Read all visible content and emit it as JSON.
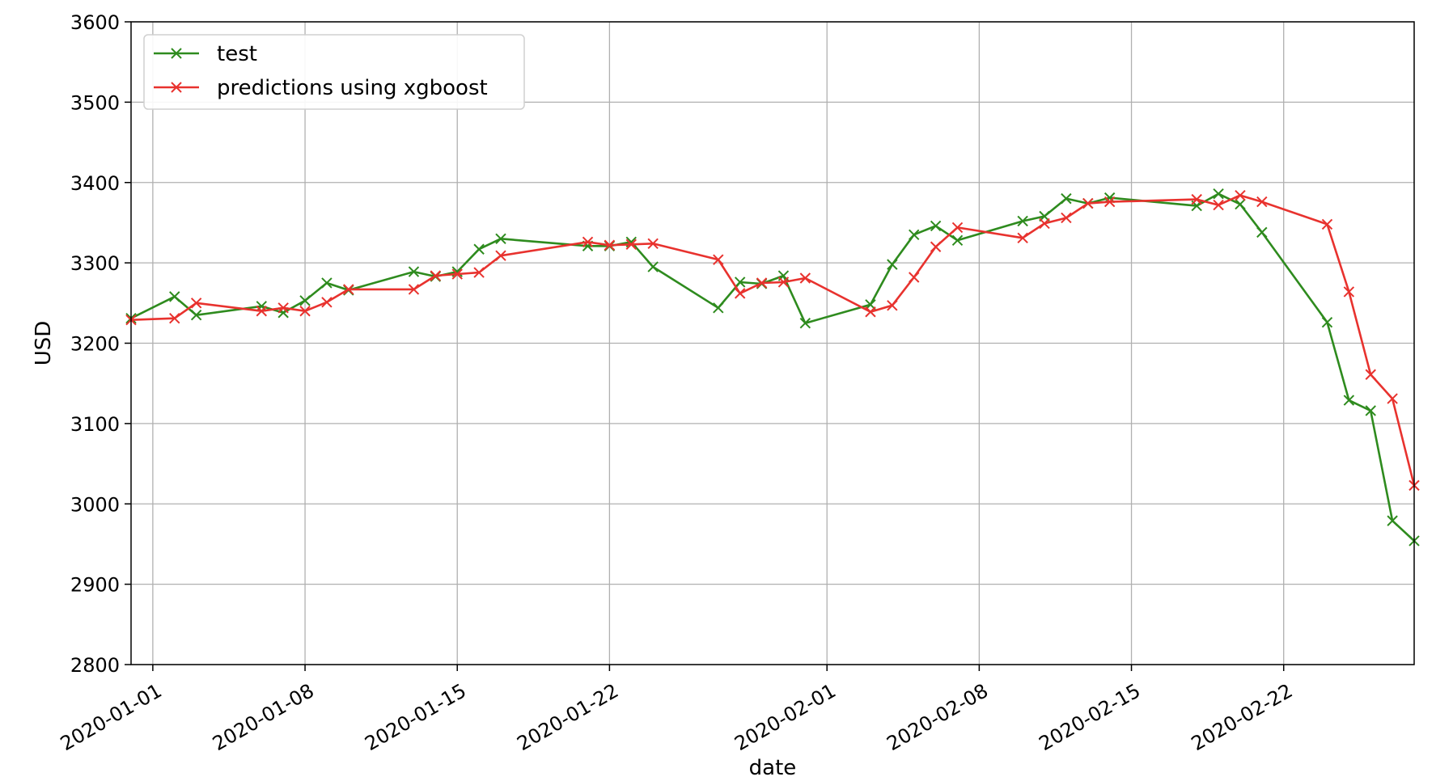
{
  "chart_data": {
    "type": "line",
    "title": "",
    "xlabel": "date",
    "ylabel": "USD",
    "ylim": [
      2800,
      3600
    ],
    "xlim": [
      "2019-12-31",
      "2020-02-28"
    ],
    "grid": true,
    "legend_position": "top-left",
    "x_ticks": [
      "2020-01-01",
      "2020-01-08",
      "2020-01-15",
      "2020-01-22",
      "2020-02-01",
      "2020-02-08",
      "2020-02-15",
      "2020-02-22"
    ],
    "y_ticks": [
      2800,
      2900,
      3000,
      3100,
      3200,
      3300,
      3400,
      3500,
      3600
    ],
    "series": [
      {
        "name": "test",
        "color": "#2e8b1e",
        "marker": "x",
        "x": [
          "2019-12-31",
          "2020-01-02",
          "2020-01-03",
          "2020-01-06",
          "2020-01-07",
          "2020-01-08",
          "2020-01-09",
          "2020-01-10",
          "2020-01-13",
          "2020-01-14",
          "2020-01-15",
          "2020-01-16",
          "2020-01-17",
          "2020-01-21",
          "2020-01-22",
          "2020-01-23",
          "2020-01-24",
          "2020-01-27",
          "2020-01-28",
          "2020-01-29",
          "2020-01-30",
          "2020-01-31",
          "2020-02-03",
          "2020-02-04",
          "2020-02-05",
          "2020-02-06",
          "2020-02-07",
          "2020-02-10",
          "2020-02-11",
          "2020-02-12",
          "2020-02-13",
          "2020-02-14",
          "2020-02-18",
          "2020-02-19",
          "2020-02-20",
          "2020-02-21",
          "2020-02-24",
          "2020-02-25",
          "2020-02-26",
          "2020-02-27",
          "2020-02-28"
        ],
        "values": [
          3231,
          3258,
          3235,
          3246,
          3238,
          3253,
          3275,
          3266,
          3289,
          3283,
          3289,
          3317,
          3330,
          3321,
          3321,
          3326,
          3295,
          3244,
          3276,
          3274,
          3284,
          3225,
          3248,
          3298,
          3335,
          3346,
          3328,
          3352,
          3358,
          3380,
          3374,
          3381,
          3371,
          3386,
          3373,
          3338,
          3226,
          3129,
          3116,
          2979,
          2954
        ]
      },
      {
        "name": "predictions using xgboost",
        "color": "#e8322e",
        "marker": "x",
        "x": [
          "2019-12-31",
          "2020-01-02",
          "2020-01-03",
          "2020-01-06",
          "2020-01-07",
          "2020-01-08",
          "2020-01-09",
          "2020-01-10",
          "2020-01-13",
          "2020-01-14",
          "2020-01-15",
          "2020-01-16",
          "2020-01-17",
          "2020-01-21",
          "2020-01-22",
          "2020-01-23",
          "2020-01-24",
          "2020-01-27",
          "2020-01-28",
          "2020-01-29",
          "2020-01-30",
          "2020-01-31",
          "2020-02-03",
          "2020-02-04",
          "2020-02-05",
          "2020-02-06",
          "2020-02-07",
          "2020-02-10",
          "2020-02-11",
          "2020-02-12",
          "2020-02-13",
          "2020-02-14",
          "2020-02-18",
          "2020-02-19",
          "2020-02-20",
          "2020-02-21",
          "2020-02-24",
          "2020-02-25",
          "2020-02-26",
          "2020-02-27",
          "2020-02-28"
        ],
        "values": [
          3229,
          3231,
          3250,
          3240,
          3244,
          3240,
          3251,
          3267,
          3267,
          3284,
          3286,
          3288,
          3309,
          3326,
          3322,
          3323,
          3324,
          3304,
          3262,
          3275,
          3276,
          3281,
          3239,
          3247,
          3282,
          3320,
          3344,
          3331,
          3349,
          3356,
          3374,
          3376,
          3379,
          3372,
          3384,
          3376,
          3348,
          3264,
          3161,
          3131,
          3023
        ]
      }
    ]
  }
}
